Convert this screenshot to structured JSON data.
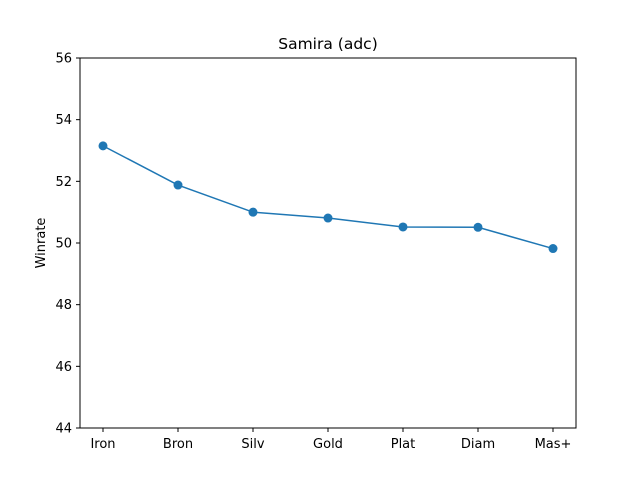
{
  "chart_data": {
    "type": "line",
    "title": "Samira (adc)",
    "xlabel": "",
    "ylabel": "Winrate",
    "categories": [
      "Iron",
      "Bron",
      "Silv",
      "Gold",
      "Plat",
      "Diam",
      "Mas+"
    ],
    "series": [
      {
        "values": [
          53.15,
          51.88,
          51.0,
          50.81,
          50.52,
          50.51,
          49.82
        ],
        "color": "#1f77b4",
        "marker": "circle"
      }
    ],
    "ylim": [
      44,
      56
    ],
    "yticks": [
      44,
      46,
      48,
      50,
      52,
      54,
      56
    ],
    "grid": false,
    "legend": "none"
  }
}
